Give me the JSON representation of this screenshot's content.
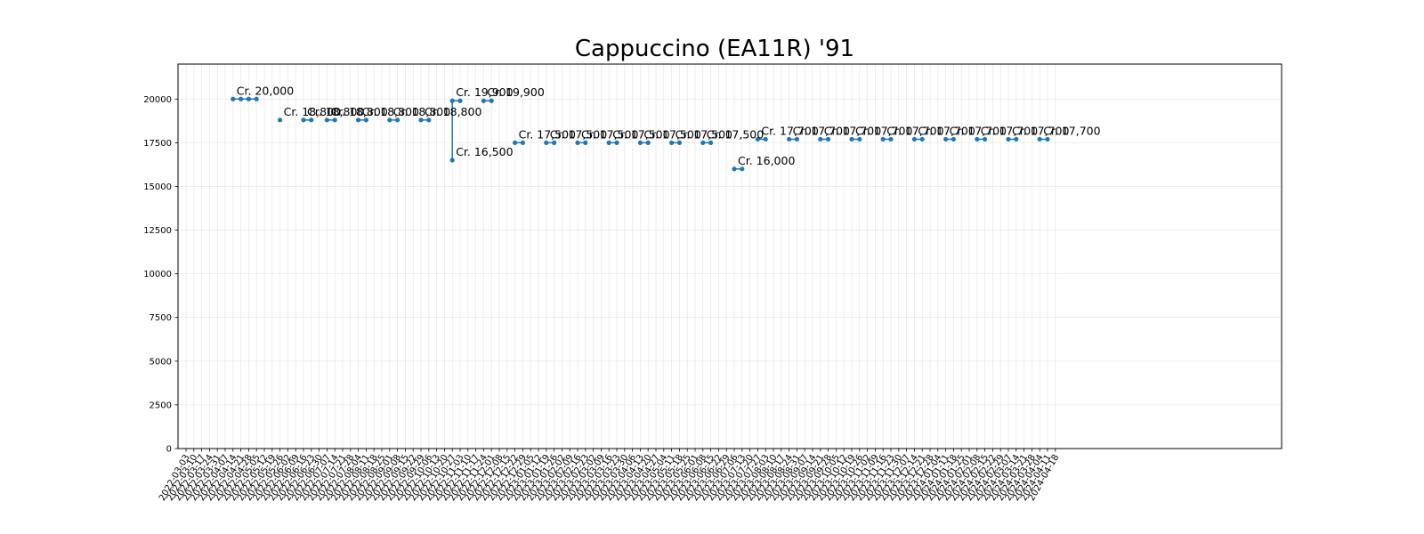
{
  "chart_data": {
    "type": "line",
    "title": "Cappuccino (EA11R) '91",
    "xlabel": "",
    "ylabel": "",
    "ylim": [
      0,
      22000
    ],
    "yticks": [
      0,
      2500,
      5000,
      7500,
      10000,
      12500,
      15000,
      17500,
      20000
    ],
    "grid": true,
    "line_color": "#1f77b4",
    "x_categories": [
      "2022-03-03",
      "2022-03-10",
      "2022-03-17",
      "2022-03-24",
      "2022-03-31",
      "2022-04-07",
      "2022-04-14",
      "2022-04-21",
      "2022-04-28",
      "2022-05-05",
      "2022-05-12",
      "2022-05-19",
      "2022-05-26",
      "2022-06-02",
      "2022-06-09",
      "2022-06-16",
      "2022-06-23",
      "2022-06-30",
      "2022-07-07",
      "2022-07-14",
      "2022-07-21",
      "2022-07-28",
      "2022-08-04",
      "2022-08-11",
      "2022-08-18",
      "2022-08-25",
      "2022-09-01",
      "2022-09-08",
      "2022-09-15",
      "2022-09-22",
      "2022-09-29",
      "2022-10-06",
      "2022-10-13",
      "2022-10-20",
      "2022-10-27",
      "2022-11-03",
      "2022-11-10",
      "2022-11-17",
      "2022-11-24",
      "2022-12-01",
      "2022-12-08",
      "2022-12-15",
      "2022-12-22",
      "2022-12-29",
      "2023-01-05",
      "2023-01-12",
      "2023-01-19",
      "2023-01-26",
      "2023-02-02",
      "2023-02-09",
      "2023-02-16",
      "2023-02-23",
      "2023-03-02",
      "2023-03-09",
      "2023-03-16",
      "2023-03-23",
      "2023-03-30",
      "2023-04-06",
      "2023-04-13",
      "2023-04-20",
      "2023-04-27",
      "2023-05-04",
      "2023-05-11",
      "2023-05-18",
      "2023-05-25",
      "2023-06-01",
      "2023-06-08",
      "2023-06-15",
      "2023-06-22",
      "2023-06-29",
      "2023-07-06",
      "2023-07-13",
      "2023-07-20",
      "2023-07-27",
      "2023-08-03",
      "2023-08-10",
      "2023-08-17",
      "2023-08-24",
      "2023-08-31",
      "2023-09-07",
      "2023-09-14",
      "2023-09-21",
      "2023-09-28",
      "2023-10-05",
      "2023-10-12",
      "2023-10-19",
      "2023-10-26",
      "2023-11-02",
      "2023-11-09",
      "2023-11-16",
      "2023-11-23",
      "2023-11-30",
      "2023-12-07",
      "2023-12-14",
      "2023-12-21",
      "2023-12-28",
      "2024-01-04",
      "2024-01-11",
      "2024-01-18",
      "2024-01-25",
      "2024-02-01",
      "2024-02-08",
      "2024-02-15",
      "2024-02-22",
      "2024-02-29",
      "2024-03-07",
      "2024-03-14",
      "2024-03-21",
      "2024-03-28",
      "2024-04-04",
      "2024-04-11",
      "2024-04-18"
    ],
    "segments": [
      {
        "x_from": "2022-04-14",
        "x_to": "2022-05-05",
        "y": 20000,
        "label": "Cr. 20,000"
      },
      {
        "x_from": "2022-05-26",
        "x_to": "2022-05-26",
        "y": 18800,
        "label": "Cr. 18,800"
      },
      {
        "x_from": "2022-06-16",
        "x_to": "2022-06-23",
        "y": 18800,
        "label": "Cr. 18,800"
      },
      {
        "x_from": "2022-07-07",
        "x_to": "2022-07-14",
        "y": 18800,
        "label": "Cr. 18,800"
      },
      {
        "x_from": "2022-08-04",
        "x_to": "2022-08-11",
        "y": 18800,
        "label": "Cr. 18,800"
      },
      {
        "x_from": "2022-09-01",
        "x_to": "2022-09-08",
        "y": 18800,
        "label": "Cr. 18,800"
      },
      {
        "x_from": "2022-09-29",
        "x_to": "2022-10-06",
        "y": 18800,
        "label": "Cr. 18,800"
      },
      {
        "x_from": "2022-10-27",
        "x_to": "2022-10-27",
        "y": 16500,
        "label": "Cr. 16,500"
      },
      {
        "x_from": "2022-10-27",
        "x_to": "2022-11-03",
        "y": 19900,
        "label": "Cr. 19,900"
      },
      {
        "x_from": "2022-11-24",
        "x_to": "2022-12-01",
        "y": 19900,
        "label": "Cr. 19,900"
      },
      {
        "x_from": "2022-12-22",
        "x_to": "2022-12-29",
        "y": 17500,
        "label": "Cr. 17,500"
      },
      {
        "x_from": "2023-01-19",
        "x_to": "2023-01-26",
        "y": 17500,
        "label": "Cr. 17,500"
      },
      {
        "x_from": "2023-02-16",
        "x_to": "2023-02-23",
        "y": 17500,
        "label": "Cr. 17,500"
      },
      {
        "x_from": "2023-03-16",
        "x_to": "2023-03-23",
        "y": 17500,
        "label": "Cr. 17,500"
      },
      {
        "x_from": "2023-04-13",
        "x_to": "2023-04-20",
        "y": 17500,
        "label": "Cr. 17,500"
      },
      {
        "x_from": "2023-05-11",
        "x_to": "2023-05-18",
        "y": 17500,
        "label": "Cr. 17,500"
      },
      {
        "x_from": "2023-06-08",
        "x_to": "2023-06-15",
        "y": 17500,
        "label": "Cr. 17,500"
      },
      {
        "x_from": "2023-07-06",
        "x_to": "2023-07-13",
        "y": 16000,
        "label": "Cr. 16,000"
      },
      {
        "x_from": "2023-07-27",
        "x_to": "2023-08-03",
        "y": 17700,
        "label": "Cr. 17,700"
      },
      {
        "x_from": "2023-08-24",
        "x_to": "2023-08-31",
        "y": 17700,
        "label": "Cr. 17,700"
      },
      {
        "x_from": "2023-09-21",
        "x_to": "2023-09-28",
        "y": 17700,
        "label": "Cr. 17,700"
      },
      {
        "x_from": "2023-10-19",
        "x_to": "2023-10-26",
        "y": 17700,
        "label": "Cr. 17,700"
      },
      {
        "x_from": "2023-11-16",
        "x_to": "2023-11-23",
        "y": 17700,
        "label": "Cr. 17,700"
      },
      {
        "x_from": "2023-12-14",
        "x_to": "2023-12-21",
        "y": 17700,
        "label": "Cr. 17,700"
      },
      {
        "x_from": "2024-01-11",
        "x_to": "2024-01-18",
        "y": 17700,
        "label": "Cr. 17,700"
      },
      {
        "x_from": "2024-02-08",
        "x_to": "2024-02-15",
        "y": 17700,
        "label": "Cr. 17,700"
      },
      {
        "x_from": "2024-03-07",
        "x_to": "2024-03-14",
        "y": 17700,
        "label": "Cr. 17,700"
      },
      {
        "x_from": "2024-04-04",
        "x_to": "2024-04-11",
        "y": 17700,
        "label": "Cr. 17,700"
      }
    ],
    "connector": {
      "x": "2022-10-27",
      "from_y": 16500,
      "to_y": 19900
    }
  }
}
